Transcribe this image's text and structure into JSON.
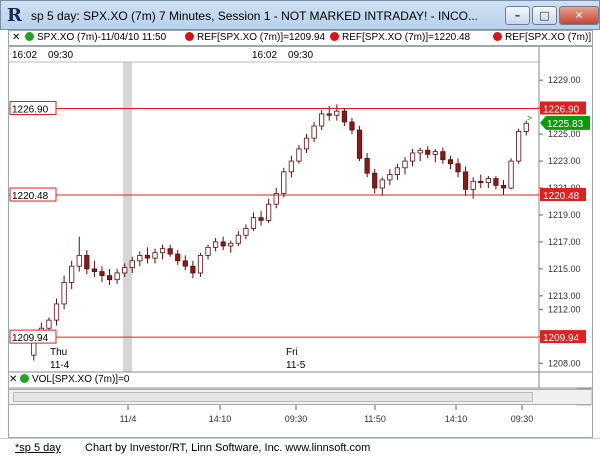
{
  "window": {
    "title": "sp 5 day: SPX.XO (7m) 7 Minutes, Session 1 - NOT MARKED INTRADAY! - INCO...",
    "minimize_glyph": "–",
    "maximize_glyph": "□",
    "close_glyph": "✕"
  },
  "legend": {
    "symbol": "SPX.XO (7m)-11/04/10 11:50",
    "ref1": "REF[SPX.XO (7m)]=1209.94",
    "ref2": "REF[SPX.XO (7m)]=1220.48",
    "ref3": "REF[SPX.XO (7m)]",
    "close_glyph": "✕"
  },
  "header_times": [
    "16:02",
    "09:30",
    "16:02",
    "09:30"
  ],
  "price_axis": [
    "1229.00",
    "1227.00",
    "1225.00",
    "1223.00",
    "1221.00",
    "1219.00",
    "1217.00",
    "1215.00",
    "1213.00",
    "1212.00",
    "1210.00",
    "1208.00"
  ],
  "ref_lines": [
    {
      "label": "1226.90",
      "value": 1226.9
    },
    {
      "label": "1220.48",
      "value": 1220.48
    },
    {
      "label": "1209.94",
      "value": 1209.94
    }
  ],
  "current_price": {
    "label": "1225.83",
    "value": 1225.83
  },
  "day_labels": [
    {
      "day": "Thu",
      "date": "11-4"
    },
    {
      "day": "Fri",
      "date": "11-5"
    }
  ],
  "volume_label": "VOL[SPX.XO (7m)]=0",
  "time_axis": [
    "11/4",
    "14:10",
    "09:30",
    "11:50",
    "14:10",
    "09:30"
  ],
  "footer": {
    "tab": "*sp 5 day",
    "credit": "Chart by Investor/RT, Linn Software, Inc. www.linnsoft.com"
  },
  "colors": {
    "ref_line": "#e02020",
    "current_price": "#0a9a0a",
    "candle_up": "#ffffff",
    "candle_down": "#8a1a1a"
  },
  "chart_data": {
    "type": "candlestick",
    "ylim": [
      1207.5,
      1230.2
    ],
    "candles": [
      [
        1208.6,
        1210.4,
        1208.2,
        1210.2
      ],
      [
        1210.2,
        1211.0,
        1209.8,
        1210.6
      ],
      [
        1210.6,
        1211.4,
        1210.0,
        1211.2
      ],
      [
        1211.2,
        1212.8,
        1210.8,
        1212.4
      ],
      [
        1212.4,
        1214.5,
        1212.0,
        1214.0
      ],
      [
        1214.0,
        1215.6,
        1213.5,
        1215.2
      ],
      [
        1215.2,
        1217.4,
        1214.8,
        1216.0
      ],
      [
        1216.0,
        1216.4,
        1214.6,
        1215.0
      ],
      [
        1215.0,
        1215.6,
        1214.4,
        1214.8
      ],
      [
        1214.8,
        1215.2,
        1214.0,
        1214.5
      ],
      [
        1214.5,
        1215.0,
        1213.8,
        1214.2
      ],
      [
        1214.2,
        1215.0,
        1213.9,
        1214.7
      ],
      [
        1214.7,
        1215.4,
        1214.4,
        1215.1
      ],
      [
        1215.1,
        1215.9,
        1214.7,
        1215.6
      ],
      [
        1215.6,
        1216.3,
        1215.2,
        1216.0
      ],
      [
        1216.0,
        1216.6,
        1215.4,
        1215.8
      ],
      [
        1215.8,
        1216.5,
        1215.4,
        1216.2
      ],
      [
        1216.2,
        1216.8,
        1215.7,
        1216.5
      ],
      [
        1216.5,
        1216.8,
        1215.9,
        1216.1
      ],
      [
        1216.1,
        1216.4,
        1215.3,
        1215.6
      ],
      [
        1215.6,
        1216.0,
        1214.9,
        1215.2
      ],
      [
        1215.2,
        1215.6,
        1214.3,
        1214.7
      ],
      [
        1214.7,
        1216.2,
        1214.4,
        1216.0
      ],
      [
        1216.0,
        1216.8,
        1215.7,
        1216.6
      ],
      [
        1216.6,
        1217.3,
        1216.3,
        1217.0
      ],
      [
        1217.0,
        1217.4,
        1216.4,
        1216.7
      ],
      [
        1216.7,
        1217.1,
        1216.2,
        1216.9
      ],
      [
        1216.9,
        1217.8,
        1216.7,
        1217.5
      ],
      [
        1217.5,
        1218.3,
        1217.2,
        1218.0
      ],
      [
        1218.0,
        1219.2,
        1217.8,
        1218.8
      ],
      [
        1218.8,
        1219.3,
        1218.2,
        1218.6
      ],
      [
        1218.6,
        1220.2,
        1218.4,
        1219.8
      ],
      [
        1219.8,
        1221.0,
        1219.5,
        1220.6
      ],
      [
        1220.6,
        1222.5,
        1220.3,
        1222.2
      ],
      [
        1222.2,
        1223.4,
        1221.8,
        1223.0
      ],
      [
        1223.0,
        1224.2,
        1222.8,
        1223.9
      ],
      [
        1223.9,
        1225.0,
        1223.6,
        1224.7
      ],
      [
        1224.7,
        1225.9,
        1224.4,
        1225.6
      ],
      [
        1225.6,
        1226.8,
        1225.3,
        1226.5
      ],
      [
        1226.5,
        1227.1,
        1226.0,
        1226.4
      ],
      [
        1226.4,
        1227.2,
        1226.0,
        1226.7
      ],
      [
        1226.7,
        1226.9,
        1225.6,
        1225.9
      ],
      [
        1225.9,
        1226.2,
        1225.0,
        1225.3
      ],
      [
        1225.3,
        1225.6,
        1223.0,
        1223.2
      ],
      [
        1223.2,
        1223.6,
        1221.8,
        1222.1
      ],
      [
        1222.1,
        1222.4,
        1220.6,
        1221.0
      ],
      [
        1221.0,
        1221.8,
        1220.4,
        1221.6
      ],
      [
        1221.6,
        1222.4,
        1221.2,
        1222.0
      ],
      [
        1222.0,
        1222.8,
        1221.6,
        1222.5
      ],
      [
        1222.5,
        1223.3,
        1222.0,
        1223.0
      ],
      [
        1223.0,
        1223.9,
        1222.6,
        1223.6
      ],
      [
        1223.6,
        1224.0,
        1223.0,
        1223.8
      ],
      [
        1223.8,
        1224.1,
        1223.2,
        1223.5
      ],
      [
        1223.5,
        1223.9,
        1222.9,
        1223.7
      ],
      [
        1223.7,
        1224.0,
        1222.8,
        1223.1
      ],
      [
        1223.1,
        1223.4,
        1222.4,
        1222.8
      ],
      [
        1222.8,
        1223.2,
        1221.8,
        1222.2
      ],
      [
        1222.2,
        1222.6,
        1220.4,
        1220.9
      ],
      [
        1220.9,
        1221.8,
        1220.2,
        1221.5
      ],
      [
        1221.5,
        1222.0,
        1221.0,
        1221.4
      ],
      [
        1221.4,
        1221.9,
        1221.0,
        1221.7
      ],
      [
        1221.7,
        1221.9,
        1220.9,
        1221.2
      ],
      [
        1221.2,
        1221.6,
        1220.5,
        1221.0
      ],
      [
        1221.0,
        1223.2,
        1220.9,
        1223.0
      ],
      [
        1223.0,
        1225.4,
        1222.8,
        1225.2
      ],
      [
        1225.2,
        1226.0,
        1224.9,
        1225.8
      ]
    ]
  }
}
